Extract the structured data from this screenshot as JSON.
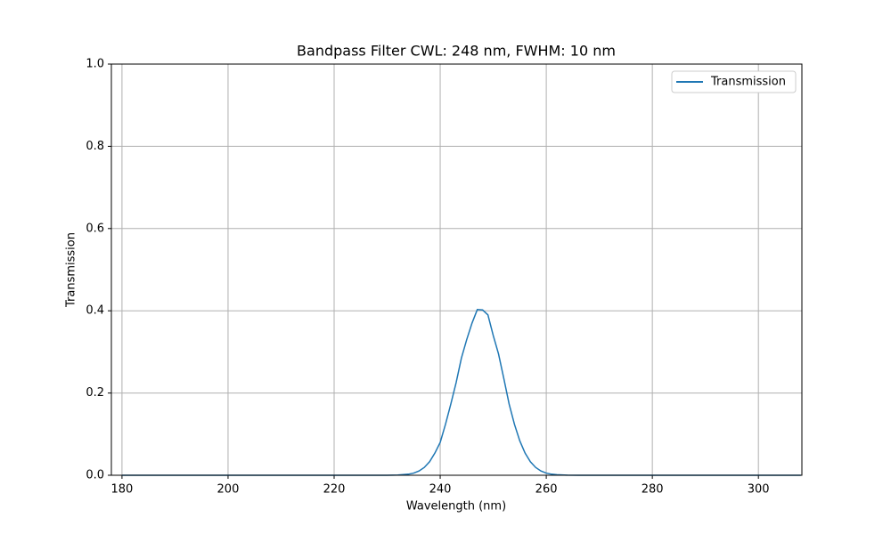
{
  "chart_data": {
    "type": "line",
    "title": "Bandpass Filter CWL: 248 nm, FWHM: 10 nm",
    "xlabel": "Wavelength (nm)",
    "ylabel": "Transmission",
    "x": [
      180,
      190,
      200,
      210,
      220,
      230,
      232,
      234,
      235,
      236,
      237,
      238,
      239,
      240,
      241,
      242,
      243,
      244,
      245,
      246,
      247,
      248,
      249,
      250,
      251,
      252,
      253,
      254,
      255,
      256,
      257,
      258,
      259,
      260,
      261,
      262,
      264,
      266,
      270,
      280,
      290,
      300,
      308
    ],
    "series": [
      {
        "name": "Transmission",
        "color": "#1f77b4",
        "values": [
          0,
          0,
          0,
          0,
          0,
          0.0001,
          0.0005,
          0.0026,
          0.0053,
          0.0103,
          0.019,
          0.033,
          0.054,
          0.08,
          0.124,
          0.173,
          0.225,
          0.285,
          0.33,
          0.37,
          0.403,
          0.402,
          0.39,
          0.34,
          0.295,
          0.235,
          0.173,
          0.124,
          0.084,
          0.054,
          0.033,
          0.019,
          0.0103,
          0.0053,
          0.0026,
          0.0013,
          0.0002,
          0,
          0,
          0,
          0,
          0,
          0
        ]
      }
    ],
    "xlim": [
      178,
      308.2
    ],
    "ylim": [
      0,
      1
    ],
    "xticks": [
      180,
      200,
      220,
      240,
      260,
      280,
      300
    ],
    "yticks": [
      {
        "value": 0,
        "label": "0.0"
      },
      0.2,
      0.4,
      0.6,
      0.8,
      {
        "value": 1,
        "label": "1.0"
      }
    ],
    "grid": true,
    "legend": "upper right"
  }
}
